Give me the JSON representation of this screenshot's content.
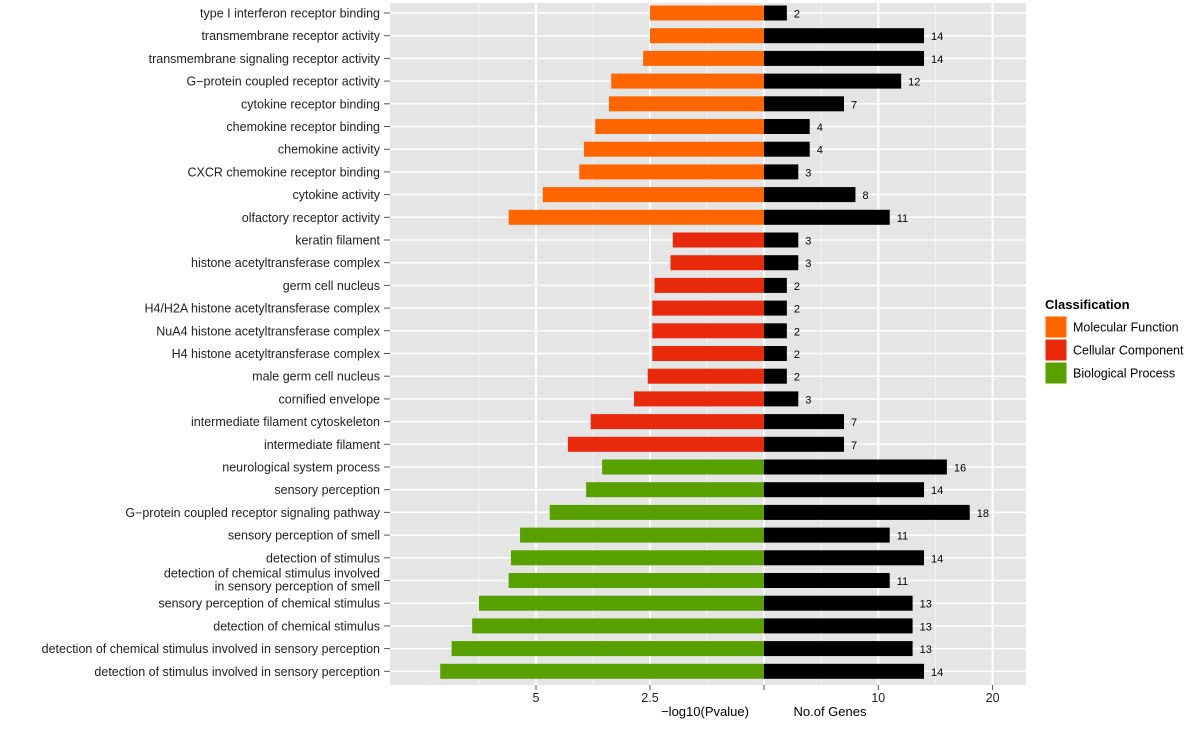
{
  "chart_data": {
    "type": "bar",
    "orientation": "horizontal",
    "layout": "butterfly",
    "categories": [
      "type I interferon receptor binding",
      "transmembrane receptor activity",
      "transmembrane signaling receptor activity",
      "G−protein coupled receptor activity",
      "cytokine receptor binding",
      "chemokine receptor binding",
      "chemokine activity",
      "CXCR chemokine receptor binding",
      "cytokine activity",
      "olfactory receptor activity",
      "keratin filament",
      "histone acetyltransferase complex",
      "germ cell nucleus",
      "H4/H2A histone acetyltransferase complex",
      "NuA4 histone acetyltransferase complex",
      "H4 histone acetyltransferase complex",
      "male germ cell nucleus",
      "cornified envelope",
      "intermediate filament cytoskeleton",
      "intermediate filament",
      "neurological system process",
      "sensory perception",
      "G−protein coupled receptor signaling pathway",
      "sensory perception of smell",
      "detection of stimulus",
      "detection of chemical stimulus involved\nin sensory perception of smell",
      "sensory perception of chemical stimulus",
      "detection of chemical stimulus",
      "detection of chemical stimulus involved in sensory perception",
      "detection of stimulus involved in sensory perception"
    ],
    "classification": [
      "Molecular Function",
      "Molecular Function",
      "Molecular Function",
      "Molecular Function",
      "Molecular Function",
      "Molecular Function",
      "Molecular Function",
      "Molecular Function",
      "Molecular Function",
      "Molecular Function",
      "Cellular Component",
      "Cellular Component",
      "Cellular Component",
      "Cellular Component",
      "Cellular Component",
      "Cellular Component",
      "Cellular Component",
      "Cellular Component",
      "Cellular Component",
      "Cellular Component",
      "Biological Process",
      "Biological Process",
      "Biological Process",
      "Biological Process",
      "Biological Process",
      "Biological Process",
      "Biological Process",
      "Biological Process",
      "Biological Process",
      "Biological Process"
    ],
    "series": [
      {
        "values": [
          2.5,
          2.5,
          2.65,
          3.35,
          3.4,
          3.7,
          3.95,
          4.05,
          4.85,
          5.6,
          2.0,
          2.05,
          2.4,
          2.45,
          2.45,
          2.45,
          2.55,
          2.85,
          3.8,
          4.3,
          3.55,
          3.9,
          4.7,
          5.35,
          5.55,
          5.6,
          6.25,
          6.4,
          6.85,
          7.1
        ]
      },
      {
        "values": [
          2,
          14,
          14,
          12,
          7,
          4,
          4,
          3,
          8,
          11,
          3,
          3,
          2,
          2,
          2,
          2,
          2,
          3,
          7,
          7,
          16,
          14,
          18,
          11,
          14,
          11,
          13,
          13,
          13,
          14
        ]
      }
    ],
    "left_axis": {
      "label": "−log10(Pvalue)",
      "ticks": [
        5,
        2.5
      ]
    },
    "right_axis": {
      "label": "No.of Genes",
      "ticks": [
        10,
        20
      ]
    },
    "legend": {
      "title": "Classification",
      "position": "right",
      "items": [
        {
          "label": "Molecular Function",
          "color": "#FF6600"
        },
        {
          "label": "Cellular Component",
          "color": "#E8290B"
        },
        {
          "label": "Biological Process",
          "color": "#58A000"
        }
      ]
    },
    "gene_bar_color": "#000000",
    "grid": true,
    "panel_background": "#E5E5E5"
  }
}
